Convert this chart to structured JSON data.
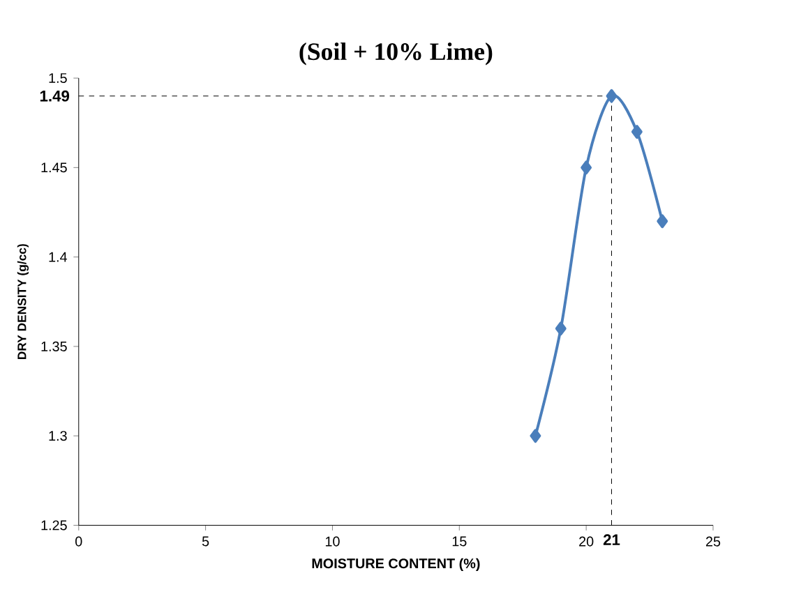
{
  "chart_data": {
    "type": "line",
    "title": "(Soil + 10% Lime)",
    "xlabel": "MOISTURE CONTENT (%)",
    "ylabel": "DRY DENSITY (g/cc)",
    "x": [
      18,
      19,
      20,
      21,
      22,
      23
    ],
    "series": [
      {
        "color": "#4a7ebb",
        "values": [
          1.3,
          1.36,
          1.45,
          1.49,
          1.47,
          1.42
        ]
      }
    ],
    "xlim": [
      0,
      25
    ],
    "xticks": [
      0,
      5,
      10,
      15,
      20,
      25
    ],
    "ylim": [
      1.25,
      1.5
    ],
    "yticks": [
      1.25,
      1.3,
      1.35,
      1.4,
      1.45,
      1.5
    ],
    "marker": "diamond",
    "line_style": "solid",
    "grid": false,
    "ref_lines": [
      {
        "axis": "y",
        "value": 1.49,
        "label": "1.49",
        "line_style": "dashed"
      },
      {
        "axis": "x",
        "value": 21,
        "label": "21",
        "line_style": "dashed"
      }
    ]
  }
}
